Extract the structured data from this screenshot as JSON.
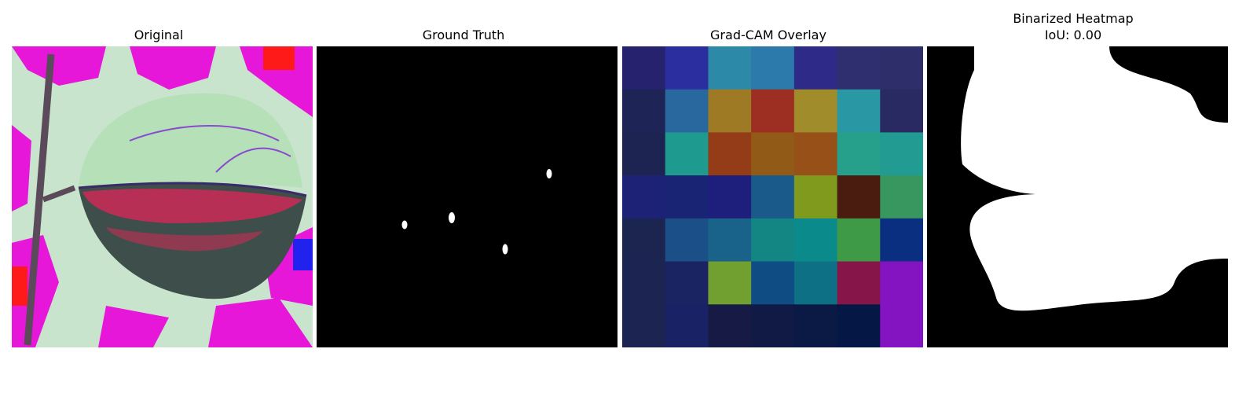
{
  "panels": [
    {
      "title": "Original"
    },
    {
      "title": "Ground Truth"
    },
    {
      "title": "Grad-CAM Overlay"
    },
    {
      "title": "Binarized Heatmap",
      "subtitle": "IoU: 0.00"
    }
  ],
  "gradcam_grid": [
    [
      "#27226e",
      "#2b2e9e",
      "#2c8aa8",
      "#2b7aab",
      "#2e2a88",
      "#2f2e6e",
      "#2e2f6a"
    ],
    [
      "#1e2455",
      "#29689e",
      "#9f7a24",
      "#9c2f22",
      "#a08c2a",
      "#2998a4",
      "#2a2a62"
    ],
    [
      "#1e2452",
      "#1e9a8e",
      "#933c17",
      "#925a17",
      "#965018",
      "#26a08a",
      "#229b92"
    ],
    [
      "#1e2277",
      "#1a2475",
      "#1e1e7d",
      "#1a5a8a",
      "#809a1d",
      "#4a1c10",
      "#37975f"
    ],
    [
      "#1c2450",
      "#1a4f87",
      "#196289",
      "#138583",
      "#0a8a8a",
      "#3f9a48",
      "#0b2f80"
    ],
    [
      "#1c2451",
      "#1a2463",
      "#72a030",
      "#0f4c84",
      "#0e7085",
      "#86154a",
      "#8414c2"
    ],
    [
      "#1c2451",
      "#1a2266",
      "#161a45",
      "#101a45",
      "#0b1a45",
      "#051845",
      "#8414c2"
    ]
  ]
}
